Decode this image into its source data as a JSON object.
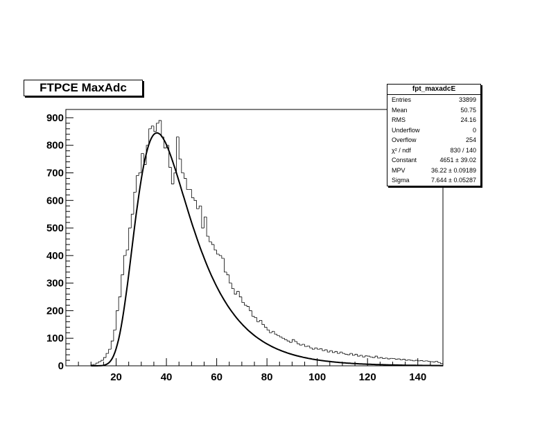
{
  "title": "FTPCE MaxAdc",
  "stats": {
    "name": "fpt_maxadcE",
    "rows": [
      {
        "label": "Entries",
        "value": "33899"
      },
      {
        "label": "Mean",
        "value": "50.75"
      },
      {
        "label": "RMS",
        "value": "24.16"
      },
      {
        "label": "Underflow",
        "value": "0"
      },
      {
        "label": "Overflow",
        "value": "254"
      },
      {
        "label": "χ² / ndf",
        "value": "830 / 140"
      },
      {
        "label": "Constant",
        "value": "4651 ± 39.02"
      },
      {
        "label": "MPV",
        "value": "36.22 ± 0.09189"
      },
      {
        "label": "Sigma",
        "value": "7.644 ± 0.05287"
      }
    ]
  },
  "chart_data": {
    "type": "histogram",
    "title": "FTPCE MaxAdc",
    "xlabel": "",
    "ylabel": "",
    "xlim": [
      0,
      150
    ],
    "ylim": [
      0,
      930
    ],
    "x_ticks": [
      20,
      40,
      60,
      80,
      100,
      120,
      140
    ],
    "y_ticks": [
      0,
      100,
      200,
      300,
      400,
      500,
      600,
      700,
      800,
      900
    ],
    "grid": false,
    "bin_width": 1,
    "bins": [
      [
        10,
        3
      ],
      [
        11,
        5
      ],
      [
        12,
        10
      ],
      [
        13,
        15
      ],
      [
        14,
        20
      ],
      [
        15,
        30
      ],
      [
        16,
        45
      ],
      [
        17,
        60
      ],
      [
        18,
        90
      ],
      [
        19,
        130
      ],
      [
        20,
        200
      ],
      [
        21,
        250
      ],
      [
        22,
        330
      ],
      [
        23,
        400
      ],
      [
        24,
        420
      ],
      [
        25,
        500
      ],
      [
        26,
        550
      ],
      [
        27,
        630
      ],
      [
        28,
        690
      ],
      [
        29,
        700
      ],
      [
        30,
        770
      ],
      [
        31,
        730
      ],
      [
        32,
        800
      ],
      [
        33,
        860
      ],
      [
        34,
        870
      ],
      [
        35,
        850
      ],
      [
        36,
        880
      ],
      [
        37,
        890
      ],
      [
        38,
        830
      ],
      [
        39,
        790
      ],
      [
        40,
        800
      ],
      [
        41,
        720
      ],
      [
        42,
        660
      ],
      [
        43,
        700
      ],
      [
        44,
        830
      ],
      [
        45,
        750
      ],
      [
        46,
        700
      ],
      [
        47,
        680
      ],
      [
        48,
        640
      ],
      [
        49,
        640
      ],
      [
        50,
        610
      ],
      [
        51,
        600
      ],
      [
        52,
        570
      ],
      [
        53,
        580
      ],
      [
        54,
        500
      ],
      [
        55,
        540
      ],
      [
        56,
        470
      ],
      [
        57,
        450
      ],
      [
        58,
        440
      ],
      [
        59,
        420
      ],
      [
        60,
        405
      ],
      [
        61,
        400
      ],
      [
        62,
        390
      ],
      [
        63,
        340
      ],
      [
        64,
        330
      ],
      [
        65,
        300
      ],
      [
        66,
        280
      ],
      [
        67,
        260
      ],
      [
        68,
        270
      ],
      [
        69,
        250
      ],
      [
        70,
        230
      ],
      [
        71,
        220
      ],
      [
        72,
        215
      ],
      [
        73,
        200
      ],
      [
        74,
        180
      ],
      [
        75,
        175
      ],
      [
        76,
        160
      ],
      [
        77,
        165
      ],
      [
        78,
        150
      ],
      [
        79,
        140
      ],
      [
        80,
        130
      ],
      [
        81,
        120
      ],
      [
        82,
        125
      ],
      [
        83,
        115
      ],
      [
        84,
        110
      ],
      [
        85,
        105
      ],
      [
        86,
        100
      ],
      [
        87,
        95
      ],
      [
        88,
        90
      ],
      [
        89,
        85
      ],
      [
        90,
        95
      ],
      [
        91,
        88
      ],
      [
        92,
        80
      ],
      [
        93,
        75
      ],
      [
        94,
        78
      ],
      [
        95,
        70
      ],
      [
        96,
        72
      ],
      [
        97,
        65
      ],
      [
        98,
        60
      ],
      [
        99,
        65
      ],
      [
        100,
        60
      ],
      [
        101,
        62
      ],
      [
        102,
        55
      ],
      [
        103,
        58
      ],
      [
        104,
        50
      ],
      [
        105,
        55
      ],
      [
        106,
        48
      ],
      [
        107,
        52
      ],
      [
        108,
        45
      ],
      [
        109,
        50
      ],
      [
        110,
        45
      ],
      [
        111,
        42
      ],
      [
        112,
        40
      ],
      [
        113,
        45
      ],
      [
        114,
        38
      ],
      [
        115,
        42
      ],
      [
        116,
        35
      ],
      [
        117,
        38
      ],
      [
        118,
        32
      ],
      [
        119,
        36
      ],
      [
        120,
        35
      ],
      [
        121,
        32
      ],
      [
        122,
        30
      ],
      [
        123,
        35
      ],
      [
        124,
        28
      ],
      [
        125,
        30
      ],
      [
        126,
        26
      ],
      [
        127,
        28
      ],
      [
        128,
        25
      ],
      [
        129,
        27
      ],
      [
        130,
        26
      ],
      [
        131,
        24
      ],
      [
        132,
        25
      ],
      [
        133,
        22
      ],
      [
        134,
        24
      ],
      [
        135,
        20
      ],
      [
        136,
        22
      ],
      [
        137,
        20
      ],
      [
        138,
        18
      ],
      [
        139,
        20
      ],
      [
        140,
        18
      ],
      [
        141,
        19
      ],
      [
        142,
        17
      ],
      [
        143,
        18
      ],
      [
        144,
        16
      ],
      [
        145,
        15
      ],
      [
        146,
        14
      ],
      [
        147,
        16
      ],
      [
        148,
        12
      ],
      [
        149,
        8
      ]
    ],
    "fit": {
      "function": "landau",
      "constant": 4651,
      "mpv": 36.22,
      "sigma": 7.644
    }
  }
}
